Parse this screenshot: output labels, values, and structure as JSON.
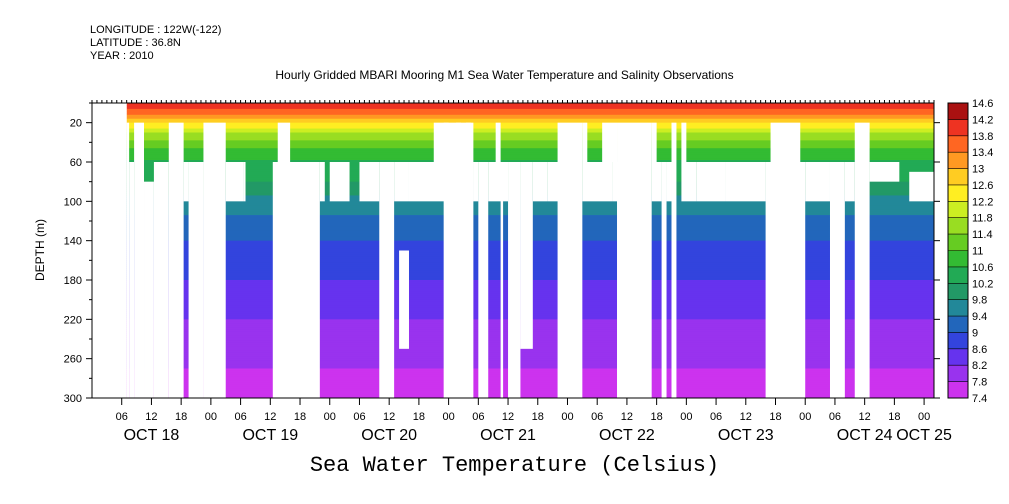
{
  "meta": {
    "longitude": "LONGITUDE : 122W(-122)",
    "latitude": "LATITUDE : 36.8N",
    "year": "YEAR : 2010"
  },
  "chart_data": {
    "type": "heatmap",
    "title": "Hourly Gridded MBARI Mooring M1 Sea Water Temperature and Salinity Observations",
    "xlabel": "Sea Water Temperature (Celsius)",
    "ylabel": "DEPTH (m)",
    "xlim_hours": [
      0,
      170
    ],
    "ylim": [
      300,
      0
    ],
    "y_ticks": [
      20,
      60,
      100,
      140,
      180,
      220,
      260,
      300
    ],
    "x_hour_ticks": [
      {
        "h": 6,
        "label": "06"
      },
      {
        "h": 12,
        "label": "12"
      },
      {
        "h": 18,
        "label": "18"
      },
      {
        "h": 24,
        "label": "00"
      },
      {
        "h": 30,
        "label": "06"
      },
      {
        "h": 36,
        "label": "12"
      },
      {
        "h": 42,
        "label": "18"
      },
      {
        "h": 48,
        "label": "00"
      },
      {
        "h": 54,
        "label": "06"
      },
      {
        "h": 60,
        "label": "12"
      },
      {
        "h": 66,
        "label": "18"
      },
      {
        "h": 72,
        "label": "00"
      },
      {
        "h": 78,
        "label": "06"
      },
      {
        "h": 84,
        "label": "12"
      },
      {
        "h": 90,
        "label": "18"
      },
      {
        "h": 96,
        "label": "00"
      },
      {
        "h": 102,
        "label": "06"
      },
      {
        "h": 108,
        "label": "12"
      },
      {
        "h": 114,
        "label": "18"
      },
      {
        "h": 120,
        "label": "00"
      },
      {
        "h": 126,
        "label": "06"
      },
      {
        "h": 132,
        "label": "12"
      },
      {
        "h": 138,
        "label": "18"
      },
      {
        "h": 144,
        "label": "00"
      },
      {
        "h": 150,
        "label": "06"
      },
      {
        "h": 156,
        "label": "12"
      },
      {
        "h": 162,
        "label": "18"
      },
      {
        "h": 168,
        "label": "00"
      }
    ],
    "date_labels": [
      {
        "h": 12,
        "label": "OCT 18"
      },
      {
        "h": 36,
        "label": "OCT 19"
      },
      {
        "h": 60,
        "label": "OCT 20"
      },
      {
        "h": 84,
        "label": "OCT 21"
      },
      {
        "h": 108,
        "label": "OCT 22"
      },
      {
        "h": 132,
        "label": "OCT 23"
      },
      {
        "h": 156,
        "label": "OCT 24"
      },
      {
        "h": 168,
        "label": "OCT 25"
      }
    ],
    "colorbar": {
      "levels": [
        7.4,
        7.8,
        8.2,
        8.6,
        9,
        9.4,
        9.8,
        10.2,
        10.6,
        11,
        11.4,
        11.8,
        12.2,
        12.6,
        13,
        13.4,
        13.8,
        14.2,
        14.6
      ],
      "labels": [
        "7.4",
        "7.8",
        "8.2",
        "8.6",
        "9",
        "9.4",
        "9.8",
        "10.2",
        "10.6",
        "11",
        "11.4",
        "11.8",
        "12.2",
        "12.6",
        "13",
        "13.4",
        "13.8",
        "14.2",
        "14.6"
      ]
    },
    "data_start_hour": 7,
    "profile": [
      {
        "depth": 0,
        "value": 14.2
      },
      {
        "depth": 10,
        "value": 13.6
      },
      {
        "depth": 20,
        "value": 12.6
      },
      {
        "depth": 30,
        "value": 11.8
      },
      {
        "depth": 45,
        "value": 11.0
      },
      {
        "depth": 60,
        "value": 10.5
      },
      {
        "depth": 80,
        "value": 10.2
      },
      {
        "depth": 100,
        "value": 9.6
      },
      {
        "depth": 140,
        "value": 9.0
      },
      {
        "depth": 180,
        "value": 8.6
      },
      {
        "depth": 220,
        "value": 8.2
      },
      {
        "depth": 260,
        "value": 7.9
      },
      {
        "depth": 300,
        "value": 7.5
      }
    ],
    "missing_regions": [
      {
        "h0": 0,
        "h1": 7,
        "d0": 0,
        "d1": 300
      },
      {
        "h0": 7,
        "h1": 7.5,
        "d0": 20,
        "d1": 300
      },
      {
        "h0": 7.5,
        "h1": 8.5,
        "d0": 60,
        "d1": 300
      },
      {
        "h0": 8.5,
        "h1": 10.5,
        "d0": 20,
        "d1": 300
      },
      {
        "h0": 10.5,
        "h1": 12.5,
        "d0": 80,
        "d1": 300
      },
      {
        "h0": 12.5,
        "h1": 15.5,
        "d0": 60,
        "d1": 300
      },
      {
        "h0": 15.5,
        "h1": 18.5,
        "d0": 20,
        "d1": 300
      },
      {
        "h0": 18.5,
        "h1": 19.5,
        "d0": 60,
        "d1": 100
      },
      {
        "h0": 19.5,
        "h1": 22.5,
        "d0": 60,
        "d1": 300
      },
      {
        "h0": 22.5,
        "h1": 27,
        "d0": 20,
        "d1": 300
      },
      {
        "h0": 27,
        "h1": 30.5,
        "d0": 60,
        "d1": 100
      },
      {
        "h0": 30.5,
        "h1": 31,
        "d0": 60,
        "d1": 100
      },
      {
        "h0": 37.5,
        "h1": 40,
        "d0": 20,
        "d1": 60
      },
      {
        "h0": 36.5,
        "h1": 46,
        "d0": 60,
        "d1": 300
      },
      {
        "h0": 46,
        "h1": 47,
        "d0": 60,
        "d1": 100
      },
      {
        "h0": 48,
        "h1": 52,
        "d0": 60,
        "d1": 100
      },
      {
        "h0": 49,
        "h1": 51.5,
        "d0": 70,
        "d1": 90
      },
      {
        "h0": 54,
        "h1": 58,
        "d0": 60,
        "d1": 100
      },
      {
        "h0": 58,
        "h1": 61,
        "d0": 60,
        "d1": 300
      },
      {
        "h0": 61,
        "h1": 64,
        "d0": 60,
        "d1": 100
      },
      {
        "h0": 62,
        "h1": 64,
        "d0": 150,
        "d1": 250
      },
      {
        "h0": 64,
        "h1": 77,
        "d0": 60,
        "d1": 100
      },
      {
        "h0": 69,
        "h1": 72,
        "d0": 20,
        "d1": 60
      },
      {
        "h0": 71,
        "h1": 77,
        "d0": 20,
        "d1": 300
      },
      {
        "h0": 73.5,
        "h1": 74.5,
        "d0": 20,
        "d1": 60
      },
      {
        "h0": 75.5,
        "h1": 76.5,
        "d0": 20,
        "d1": 60
      },
      {
        "h0": 77,
        "h1": 78,
        "d0": 60,
        "d1": 100
      },
      {
        "h0": 78,
        "h1": 80,
        "d0": 60,
        "d1": 300
      },
      {
        "h0": 80,
        "h1": 84,
        "d0": 60,
        "d1": 100
      },
      {
        "h0": 81.5,
        "h1": 82.5,
        "d0": 20,
        "d1": 60
      },
      {
        "h0": 82.5,
        "h1": 83,
        "d0": 60,
        "d1": 300
      },
      {
        "h0": 84,
        "h1": 86.5,
        "d0": 60,
        "d1": 300
      },
      {
        "h0": 86.5,
        "h1": 89,
        "d0": 60,
        "d1": 250
      },
      {
        "h0": 89,
        "h1": 92,
        "d0": 60,
        "d1": 100
      },
      {
        "h0": 92,
        "h1": 96,
        "d0": 60,
        "d1": 100
      },
      {
        "h0": 94,
        "h1": 99,
        "d0": 20,
        "d1": 300
      },
      {
        "h0": 99,
        "h1": 105,
        "d0": 60,
        "d1": 100
      },
      {
        "h0": 99,
        "h1": 100,
        "d0": 20,
        "d1": 60
      },
      {
        "h0": 103,
        "h1": 106,
        "d0": 20,
        "d1": 60
      },
      {
        "h0": 105,
        "h1": 111,
        "d0": 60,
        "d1": 100
      },
      {
        "h0": 106,
        "h1": 113,
        "d0": 20,
        "d1": 300
      },
      {
        "h0": 113,
        "h1": 115,
        "d0": 60,
        "d1": 100
      },
      {
        "h0": 113,
        "h1": 114,
        "d0": 20,
        "d1": 60
      },
      {
        "h0": 115,
        "h1": 116,
        "d0": 60,
        "d1": 300
      },
      {
        "h0": 116,
        "h1": 117,
        "d0": 60,
        "d1": 100
      },
      {
        "h0": 117,
        "h1": 118,
        "d0": 20,
        "d1": 300
      },
      {
        "h0": 119,
        "h1": 122,
        "d0": 60,
        "d1": 100
      },
      {
        "h0": 119,
        "h1": 120,
        "d0": 20,
        "d1": 60
      },
      {
        "h0": 122,
        "h1": 128,
        "d0": 60,
        "d1": 100
      },
      {
        "h0": 128,
        "h1": 136,
        "d0": 60,
        "d1": 100
      },
      {
        "h0": 136,
        "h1": 144,
        "d0": 60,
        "d1": 300
      },
      {
        "h0": 137,
        "h1": 143,
        "d0": 20,
        "d1": 60
      },
      {
        "h0": 144,
        "h1": 149,
        "d0": 60,
        "d1": 100
      },
      {
        "h0": 149,
        "h1": 152,
        "d0": 60,
        "d1": 300
      },
      {
        "h0": 152,
        "h1": 154,
        "d0": 60,
        "d1": 100
      },
      {
        "h0": 154,
        "h1": 157,
        "d0": 20,
        "d1": 300
      },
      {
        "h0": 157,
        "h1": 163,
        "d0": 60,
        "d1": 80
      },
      {
        "h0": 165,
        "h1": 170,
        "d0": 70,
        "d1": 100
      }
    ]
  }
}
